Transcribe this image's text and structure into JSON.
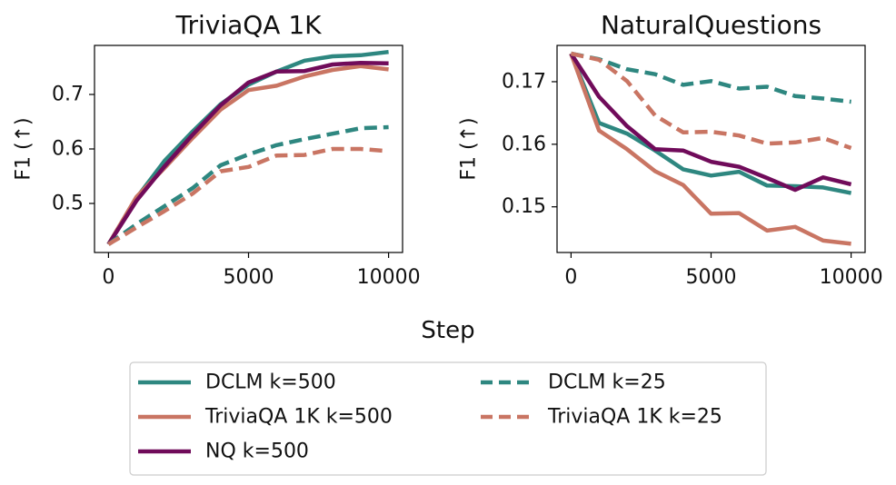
{
  "figure": {
    "shared_xlabel": "Step"
  },
  "colors": {
    "teal": "#2e8780",
    "salmon": "#c97563",
    "purple": "#700b5a"
  },
  "chart_data": [
    {
      "type": "line",
      "title": "TriviaQA 1K",
      "xlabel": "",
      "ylabel": "F1 (↑)",
      "xlim": [
        -500,
        10500
      ],
      "ylim": [
        0.41,
        0.79
      ],
      "xticks": [
        0,
        5000,
        10000
      ],
      "xtick_labels": [
        "0",
        "5000",
        "10000"
      ],
      "yticks": [
        0.5,
        0.6,
        0.7
      ],
      "ytick_labels": [
        "0.5",
        "0.6",
        "0.7"
      ],
      "x": [
        0,
        1000,
        2000,
        3000,
        4000,
        5000,
        6000,
        7000,
        8000,
        9000,
        10000
      ],
      "series": [
        {
          "name": "DCLM k=500",
          "color": "teal",
          "style": "solid",
          "values": [
            0.425,
            0.51,
            0.578,
            0.632,
            0.682,
            0.718,
            0.742,
            0.762,
            0.77,
            0.772,
            0.778
          ]
        },
        {
          "name": "TriviaQA 1K k=500",
          "color": "salmon",
          "style": "solid",
          "values": [
            0.425,
            0.512,
            0.565,
            0.62,
            0.672,
            0.708,
            0.716,
            0.733,
            0.745,
            0.752,
            0.746
          ]
        },
        {
          "name": "NQ k=500",
          "color": "purple",
          "style": "solid",
          "values": [
            0.425,
            0.505,
            0.568,
            0.626,
            0.68,
            0.722,
            0.742,
            0.743,
            0.755,
            0.758,
            0.757
          ]
        },
        {
          "name": "DCLM k=25",
          "color": "teal",
          "style": "dashed",
          "values": [
            0.425,
            0.462,
            0.495,
            0.528,
            0.57,
            0.59,
            0.607,
            0.618,
            0.628,
            0.638,
            0.64
          ]
        },
        {
          "name": "TriviaQA 1K k=25",
          "color": "salmon",
          "style": "dashed",
          "values": [
            0.425,
            0.456,
            0.486,
            0.518,
            0.559,
            0.567,
            0.588,
            0.589,
            0.6,
            0.6,
            0.596
          ]
        }
      ]
    },
    {
      "type": "line",
      "title": "NaturalQuestions",
      "xlabel": "",
      "ylabel": "F1 (↑)",
      "xlim": [
        -500,
        10500
      ],
      "ylim": [
        0.1427,
        0.1758
      ],
      "xticks": [
        0,
        5000,
        10000
      ],
      "xtick_labels": [
        "0",
        "5000",
        "10000"
      ],
      "yticks": [
        0.15,
        0.16,
        0.17
      ],
      "ytick_labels": [
        "0.15",
        "0.16",
        "0.17"
      ],
      "x": [
        0,
        1000,
        2000,
        3000,
        4000,
        5000,
        6000,
        7000,
        8000,
        9000,
        10000
      ],
      "series": [
        {
          "name": "DCLM k=500",
          "color": "teal",
          "style": "solid",
          "values": [
            0.1745,
            0.1634,
            0.1617,
            0.159,
            0.156,
            0.155,
            0.1556,
            0.1534,
            0.1533,
            0.1531,
            0.1522
          ]
        },
        {
          "name": "TriviaQA 1K k=500",
          "color": "salmon",
          "style": "solid",
          "values": [
            0.1745,
            0.1622,
            0.1592,
            0.1557,
            0.1535,
            0.1489,
            0.149,
            0.1462,
            0.1468,
            0.1446,
            0.1441
          ]
        },
        {
          "name": "NQ k=500",
          "color": "purple",
          "style": "solid",
          "values": [
            0.1745,
            0.1676,
            0.1629,
            0.1592,
            0.159,
            0.1572,
            0.1564,
            0.1546,
            0.1527,
            0.1547,
            0.1536
          ]
        },
        {
          "name": "DCLM k=25",
          "color": "teal",
          "style": "dashed",
          "values": [
            0.1745,
            0.1736,
            0.172,
            0.1712,
            0.1695,
            0.1701,
            0.1689,
            0.1692,
            0.1677,
            0.1673,
            0.1668
          ]
        },
        {
          "name": "TriviaQA 1K k=25",
          "color": "salmon",
          "style": "dashed",
          "values": [
            0.1745,
            0.1735,
            0.1701,
            0.1646,
            0.1619,
            0.162,
            0.1614,
            0.1601,
            0.1603,
            0.161,
            0.1594
          ]
        }
      ]
    }
  ],
  "legend": {
    "location": "bottom-center",
    "columns": 2,
    "entries": [
      {
        "label": "DCLM k=500",
        "color": "teal",
        "style": "solid"
      },
      {
        "label": "TriviaQA 1K k=500",
        "color": "salmon",
        "style": "solid"
      },
      {
        "label": "NQ k=500",
        "color": "purple",
        "style": "solid"
      },
      {
        "label": "DCLM k=25",
        "color": "teal",
        "style": "dashed"
      },
      {
        "label": "TriviaQA 1K k=25",
        "color": "salmon",
        "style": "dashed"
      }
    ]
  }
}
